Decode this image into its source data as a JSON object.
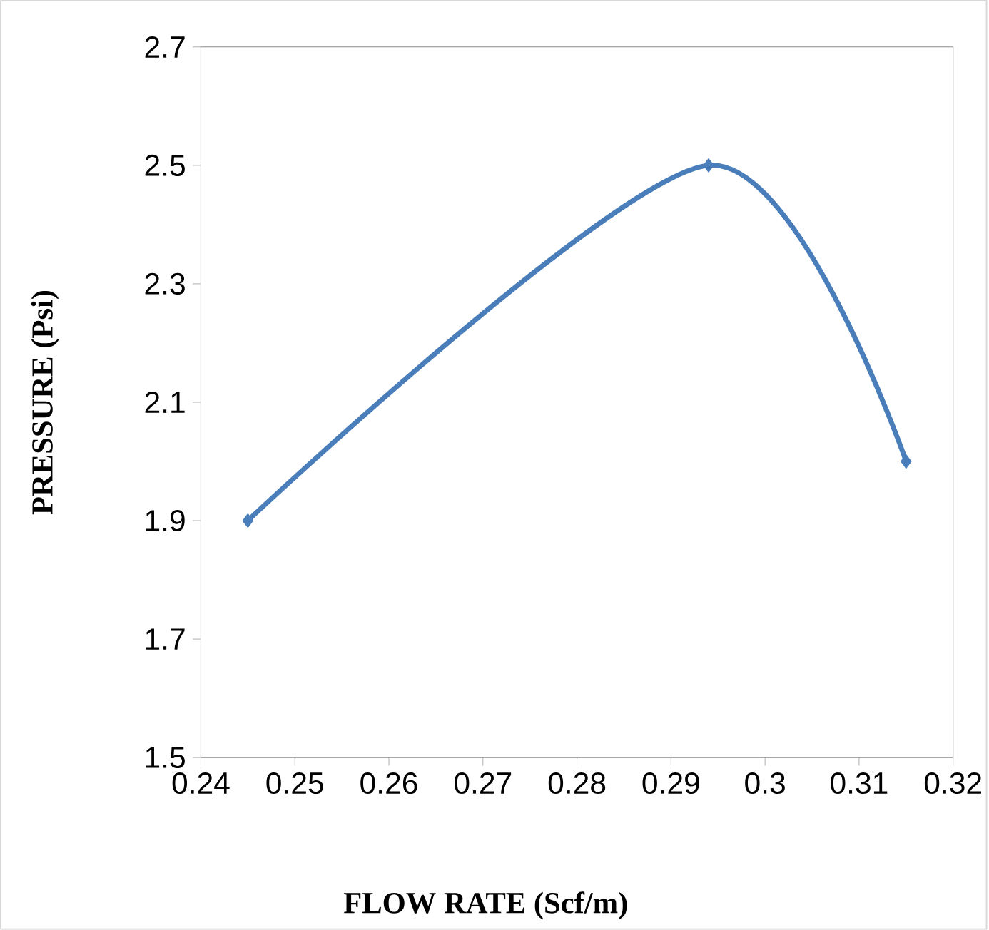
{
  "chart_data": {
    "type": "line",
    "xlabel": "FLOW RATE (Scf/m)",
    "ylabel": "PRESSURE (Psi)",
    "x": [
      0.245,
      0.294,
      0.315
    ],
    "series": [
      {
        "color": "#4a7ebb",
        "values": [
          1.9,
          2.5,
          2.0
        ]
      }
    ],
    "xlim": [
      0.24,
      0.32
    ],
    "xticks": [
      0.24,
      0.25,
      0.26,
      0.27,
      0.28,
      0.29,
      0.3,
      0.31,
      0.32
    ],
    "ylim": [
      1.5,
      2.7
    ],
    "yticks": [
      1.5,
      1.7,
      1.9,
      2.1,
      2.3,
      2.5,
      2.7
    ],
    "grid": false,
    "marker": "diamond",
    "line_style": "solid"
  }
}
